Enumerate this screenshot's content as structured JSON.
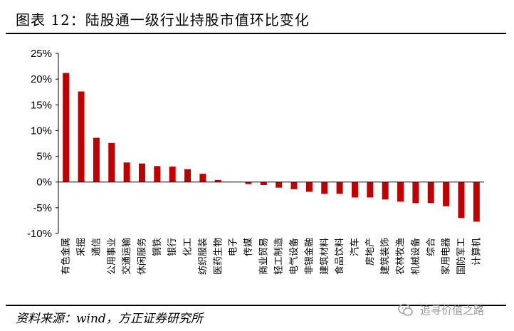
{
  "title": "图表 12：陆股通一级行业持股市值环比变化",
  "source": "资料来源：wind，方正证券研究所",
  "watermark": "追寻价值之路",
  "colors": {
    "bar": "#c00000",
    "axis": "#000000"
  },
  "chart_data": {
    "type": "bar",
    "categories": [
      "有色金属",
      "采掘",
      "通信",
      "公用事业",
      "交通运输",
      "休闲服务",
      "钢铁",
      "银行",
      "化工",
      "纺织服装",
      "医药生物",
      "电子",
      "传媒",
      "商业贸易",
      "轻工制造",
      "电气设备",
      "非银金融",
      "建筑材料",
      "食品饮料",
      "汽车",
      "房地产",
      "建筑装饰",
      "农林牧渔",
      "机械设备",
      "综合",
      "家用电器",
      "国防军工",
      "计算机"
    ],
    "values": [
      21.2,
      17.6,
      8.6,
      7.6,
      3.8,
      3.6,
      3.1,
      3.0,
      2.5,
      1.6,
      0.4,
      0.0,
      -0.4,
      -0.6,
      -1.1,
      -1.4,
      -1.9,
      -2.3,
      -2.3,
      -3.0,
      -3.0,
      -3.4,
      -3.8,
      -4.1,
      -4.1,
      -4.7,
      -7.0,
      -7.7
    ],
    "ylim": [
      -10,
      25
    ],
    "yticks": [
      25,
      20,
      15,
      10,
      5,
      0,
      -5,
      -10
    ],
    "ytick_labels": [
      "25%",
      "20%",
      "15%",
      "10%",
      "5%",
      "0%",
      "-5%",
      "-10%"
    ],
    "xlabel": "",
    "ylabel": "",
    "grid": false,
    "legend": "none"
  }
}
